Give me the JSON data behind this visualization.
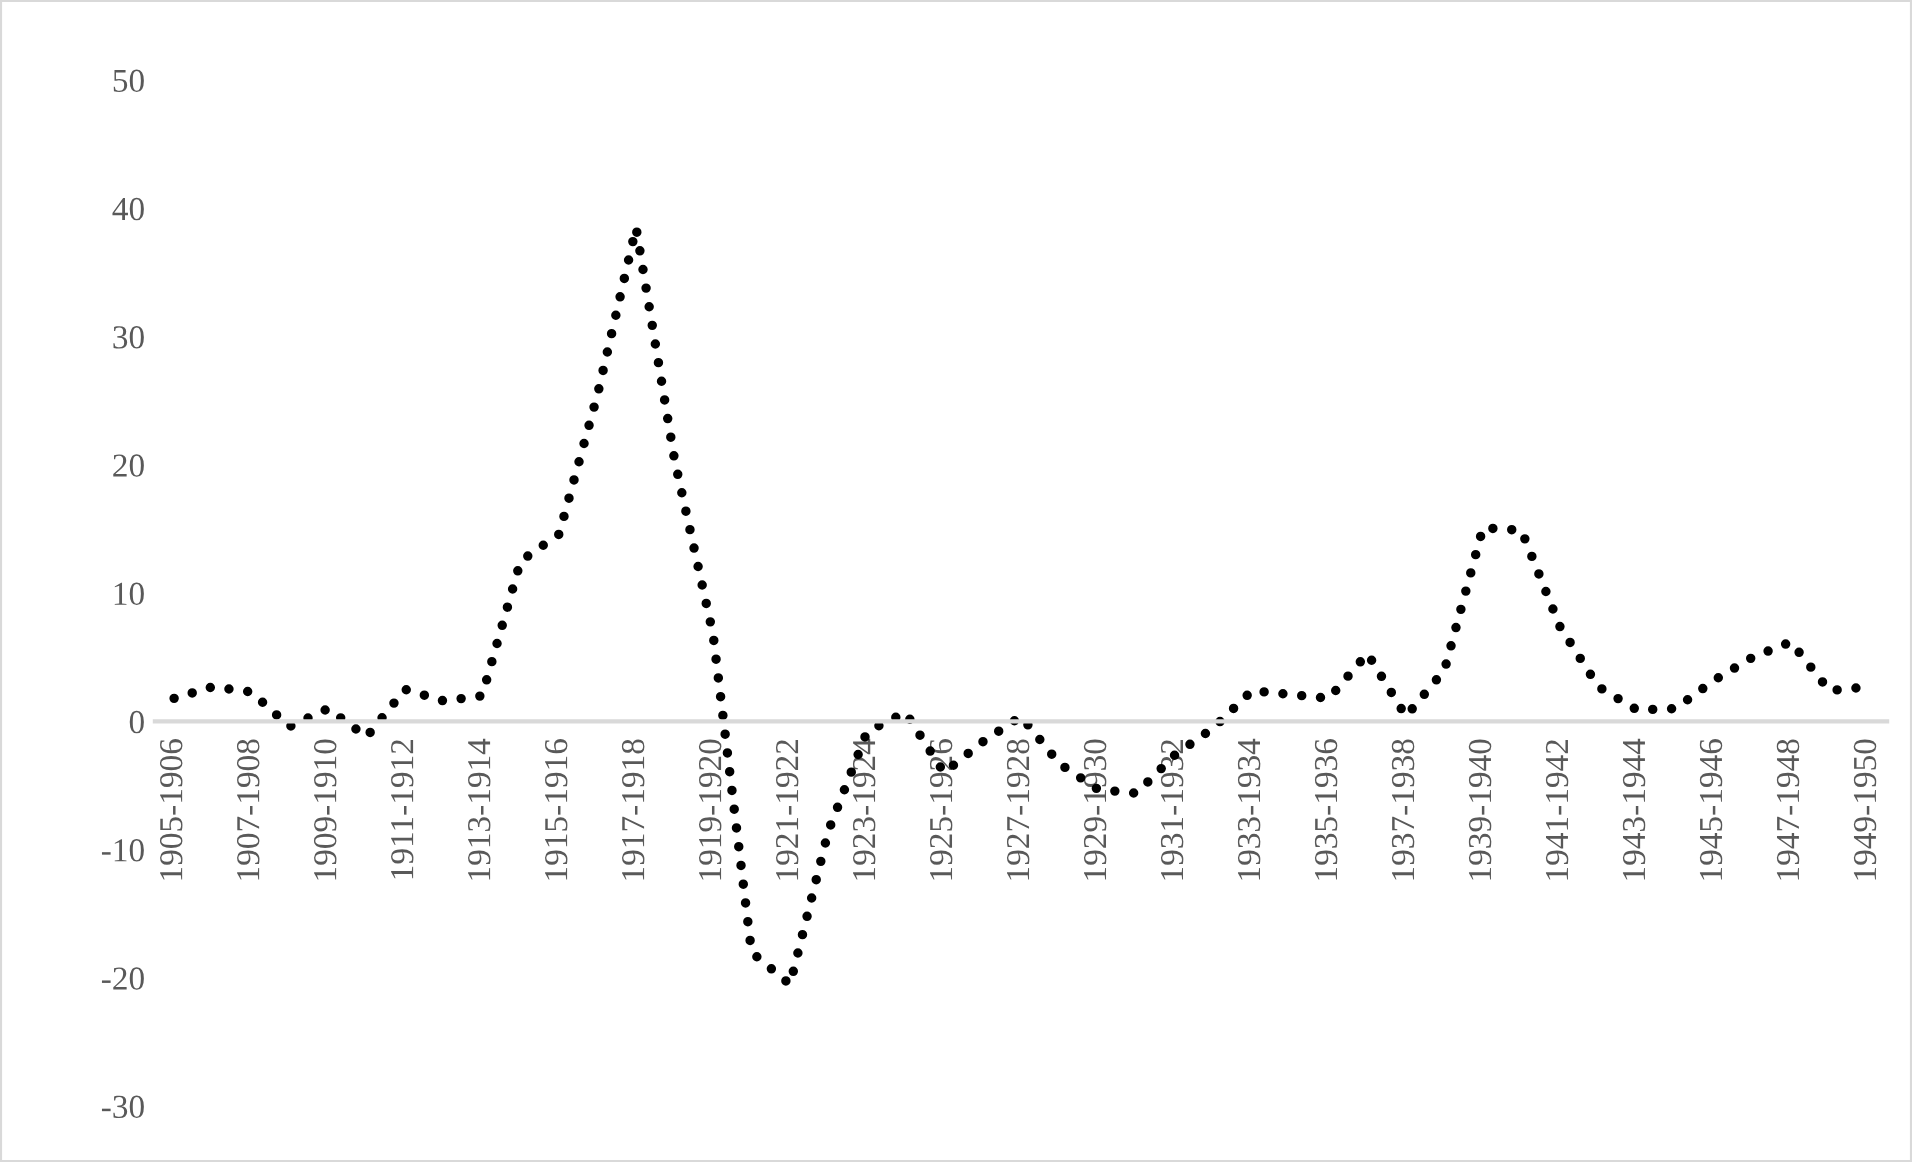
{
  "chart_data": {
    "type": "line",
    "categories": [
      "1905-1906",
      null,
      "1907-1908",
      null,
      "1909-1910",
      null,
      "1911-1912",
      null,
      "1913-1914",
      null,
      "1915-1916",
      null,
      "1917-1918",
      null,
      "1919-1920",
      null,
      "1921-1922",
      null,
      "1923-1924",
      null,
      "1925-1926",
      null,
      "1927-1928",
      null,
      "1929-1930",
      null,
      "1931-1932",
      null,
      "1933-1934",
      null,
      "1935-1936",
      null,
      "1937-1938",
      null,
      "1939-1940",
      null,
      "1941-1942",
      null,
      "1943-1944",
      null,
      "1945-1946",
      null,
      "1947-1948",
      null,
      "1949-1950"
    ],
    "series": [
      {
        "color": "#000000",
        "values": [
          1.8,
          2.7,
          2.3,
          -0.4,
          1.0,
          -1.2,
          2.5,
          1.6,
          2.0,
          12.5,
          14.6,
          25.5,
          38.5,
          20.4,
          6.8,
          -18,
          -20.5,
          -8.5,
          -0.8,
          0.7,
          -4.0,
          -1.6,
          0.4,
          -3.3,
          -5.3,
          -5.6,
          -2.6,
          -0.5,
          2.4,
          2.1,
          1.8,
          5.3,
          0.4,
          4.0,
          15.1,
          14.9,
          7.4,
          2.7,
          0.9,
          1.0,
          3.2,
          5.0,
          6.2,
          2.4,
          2.7
        ]
      }
    ],
    "ylim": [
      -30,
      50
    ],
    "yticks": [
      -30,
      -20,
      -10,
      0,
      10,
      20,
      30,
      40,
      50
    ],
    "grid": false,
    "legend": false,
    "marker": "none",
    "line_style": "dotted"
  }
}
